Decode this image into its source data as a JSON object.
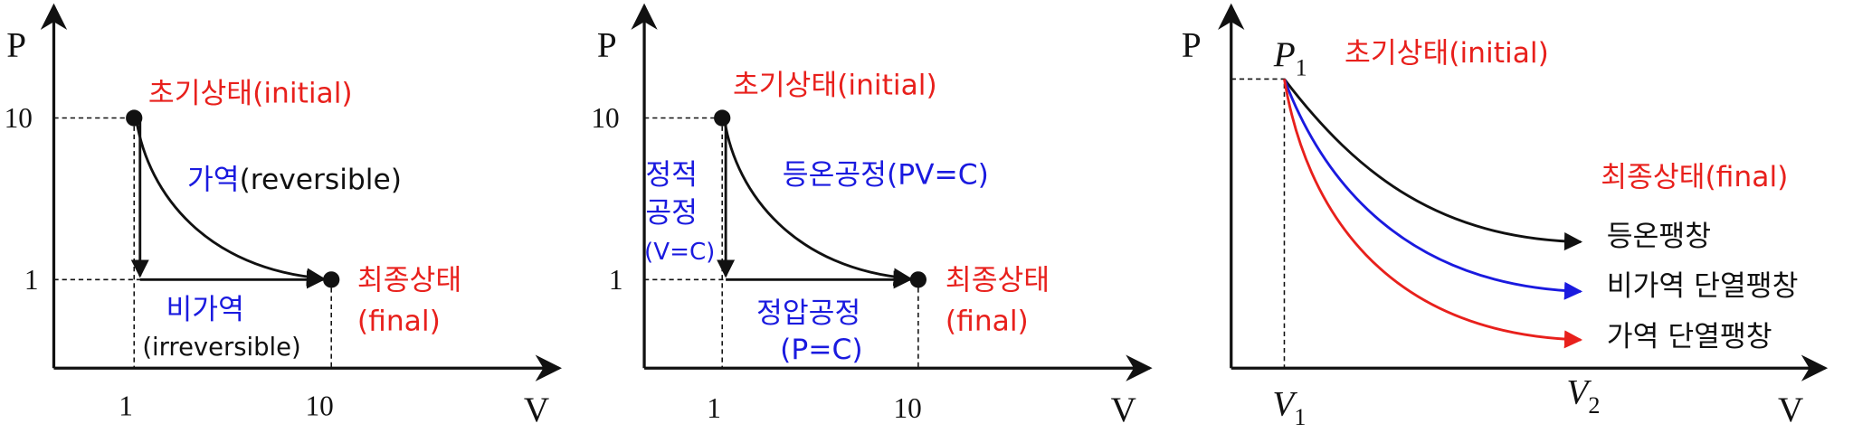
{
  "panels": [
    {
      "y_axis": "P",
      "x_axis": "V",
      "y_ticks": [
        "10",
        "1"
      ],
      "x_ticks": [
        "1",
        "10"
      ],
      "initial": "초기상태(initial)",
      "reversible": [
        "가역",
        "(reversible)"
      ],
      "irreversible": [
        "비가역",
        "(irreversible)"
      ],
      "final": [
        "최종상태",
        "(final)"
      ]
    },
    {
      "y_axis": "P",
      "x_axis": "V",
      "y_ticks": [
        "10",
        "1"
      ],
      "x_ticks": [
        "1",
        "10"
      ],
      "initial": "초기상태(initial)",
      "isochoric": [
        "정적",
        "공정",
        "(V=C)"
      ],
      "isothermal": "등온공정(PV=C)",
      "isobaric": [
        "정압공정",
        "(P=C)"
      ],
      "final": [
        "최종상태",
        "(final)"
      ]
    },
    {
      "y_axis": "P",
      "x_axis": "V",
      "p1": {
        "symbol": "P",
        "subscript": "1"
      },
      "v1": {
        "symbol": "V",
        "subscript": "1"
      },
      "v2": {
        "symbol": "V",
        "subscript": "2"
      },
      "initial": "초기상태(initial)",
      "final": "최종상태(final)",
      "curves": [
        "등온팽창",
        "비가역 단열팽창",
        "가역 단열팽창"
      ]
    }
  ]
}
